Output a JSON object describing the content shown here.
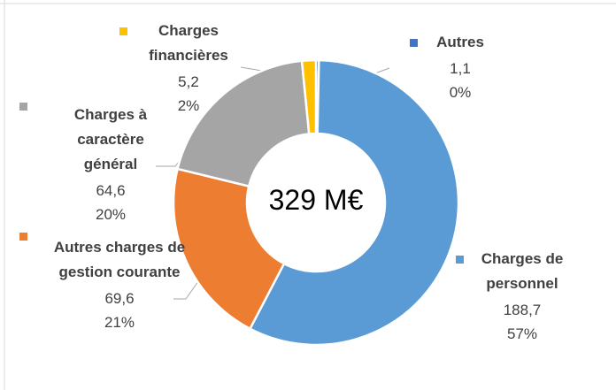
{
  "chart_data": {
    "type": "donut",
    "center_label": "329 M€",
    "categories": [
      "Autres",
      "Charges de personnel",
      "Autres charges de gestion courante",
      "Charges à caractère général",
      "Charges financières"
    ],
    "values": [
      1.1,
      188.7,
      69.6,
      64.6,
      5.2
    ],
    "value_labels": [
      "1,1",
      "188,7",
      "69,6",
      "64,6",
      "5,2"
    ],
    "percent_labels": [
      "0%",
      "57%",
      "21%",
      "20%",
      "2%"
    ],
    "colors": [
      "#4472c4",
      "#5b9bd5",
      "#ed7d31",
      "#a5a5a5",
      "#ffc000"
    ]
  }
}
